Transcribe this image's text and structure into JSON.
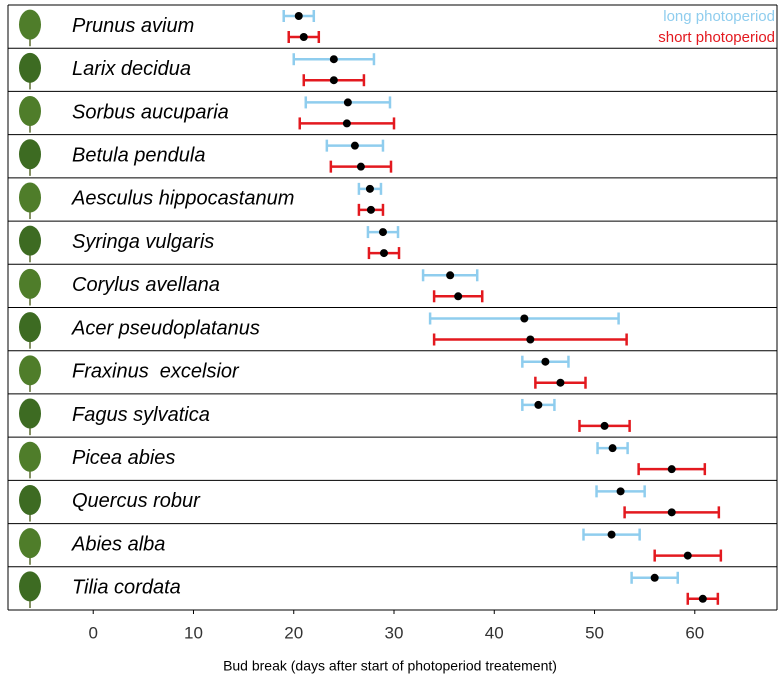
{
  "chart_data": {
    "type": "dot",
    "x_label": "Bud break (days after start of photoperiod treatement)",
    "categories": [
      "Prunus avium",
      "Larix decidua",
      "Sorbus aucuparia",
      "Betula pendula",
      "Aesculus hippocastanum",
      "Syringa vulgaris",
      "Corylus avellana",
      "Acer pseudoplatanus",
      "Fraxinus  excelsior",
      "Fagus sylvatica",
      "Picea abies",
      "Quercus robur",
      "Abies alba",
      "Tilia cordata"
    ],
    "series": [
      {
        "name": "long photoperiod",
        "color": "#8fcdee",
        "values": [
          20.5,
          24.0,
          25.4,
          26.1,
          27.6,
          28.9,
          35.6,
          43.0,
          45.1,
          44.4,
          51.8,
          52.6,
          51.7,
          56.0
        ],
        "errors": [
          1.5,
          4.0,
          4.2,
          2.8,
          1.1,
          1.5,
          2.7,
          9.4,
          2.3,
          1.6,
          1.5,
          2.4,
          2.8,
          2.3
        ]
      },
      {
        "name": "short photoperiod",
        "color": "#e3191f",
        "values": [
          21.0,
          24.0,
          25.3,
          26.7,
          27.7,
          29.0,
          36.4,
          43.6,
          46.6,
          51.0,
          57.7,
          57.7,
          59.3,
          60.8
        ],
        "errors": [
          1.5,
          3.0,
          4.7,
          3.0,
          1.2,
          1.5,
          2.4,
          9.6,
          2.5,
          2.5,
          3.3,
          4.7,
          3.3,
          1.5
        ]
      }
    ],
    "xlim": [
      -8.5,
      68.2
    ],
    "xticks": [
      0,
      10,
      20,
      30,
      40,
      50,
      60
    ],
    "legend": "upper right"
  }
}
